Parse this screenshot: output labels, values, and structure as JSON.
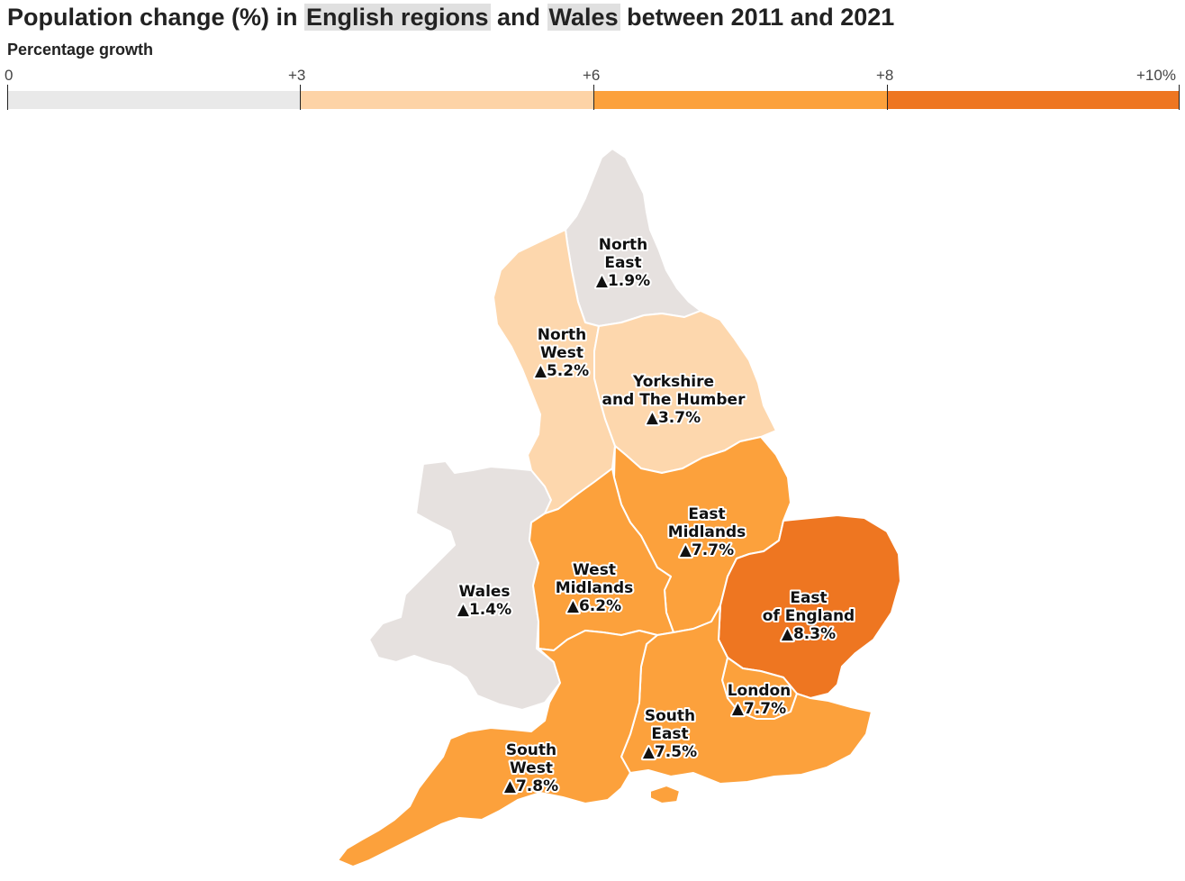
{
  "title": {
    "part1": "Population change (%) in ",
    "highlight1": "English regions",
    "part2": " and ",
    "highlight2": "Wales",
    "part3": " between 2011 and 2021"
  },
  "legend": {
    "title": "Percentage growth",
    "ticks": [
      "0",
      "+3",
      "+6",
      "+8",
      "+10%"
    ],
    "bins": [
      {
        "from": 0,
        "to": 3,
        "color": "#e9e9e9"
      },
      {
        "from": 3,
        "to": 6,
        "color": "#fdd3a6"
      },
      {
        "from": 6,
        "to": 8,
        "color": "#fca13c"
      },
      {
        "from": 8,
        "to": 10,
        "color": "#ee7621"
      }
    ]
  },
  "regions": [
    {
      "id": "north-east",
      "name_lines": [
        "North",
        "East"
      ],
      "value_text": "▲1.9%",
      "value": 1.9,
      "color": "#e6e1df"
    },
    {
      "id": "north-west",
      "name_lines": [
        "North",
        "West"
      ],
      "value_text": "▲5.2%",
      "value": 5.2,
      "color": "#fdd7ad"
    },
    {
      "id": "yorkshire",
      "name_lines": [
        "Yorkshire",
        "and The Humber"
      ],
      "value_text": "▲3.7%",
      "value": 3.7,
      "color": "#fdd7ad"
    },
    {
      "id": "east-midlands",
      "name_lines": [
        "East",
        "Midlands"
      ],
      "value_text": "▲7.7%",
      "value": 7.7,
      "color": "#fca13c"
    },
    {
      "id": "west-midlands",
      "name_lines": [
        "West",
        "Midlands"
      ],
      "value_text": "▲6.2%",
      "value": 6.2,
      "color": "#fca13c"
    },
    {
      "id": "wales",
      "name_lines": [
        "Wales"
      ],
      "value_text": "▲1.4%",
      "value": 1.4,
      "color": "#e6e1df"
    },
    {
      "id": "east-of-england",
      "name_lines": [
        "East",
        "of England"
      ],
      "value_text": "▲8.3%",
      "value": 8.3,
      "color": "#ee7621"
    },
    {
      "id": "london",
      "name_lines": [
        "London"
      ],
      "value_text": "▲7.7%",
      "value": 7.7,
      "color": "#fca13c"
    },
    {
      "id": "south-east",
      "name_lines": [
        "South",
        "East"
      ],
      "value_text": "▲7.5%",
      "value": 7.5,
      "color": "#fca13c"
    },
    {
      "id": "south-west",
      "name_lines": [
        "South",
        "West"
      ],
      "value_text": "▲7.8%",
      "value": 7.8,
      "color": "#fca13c"
    }
  ]
}
